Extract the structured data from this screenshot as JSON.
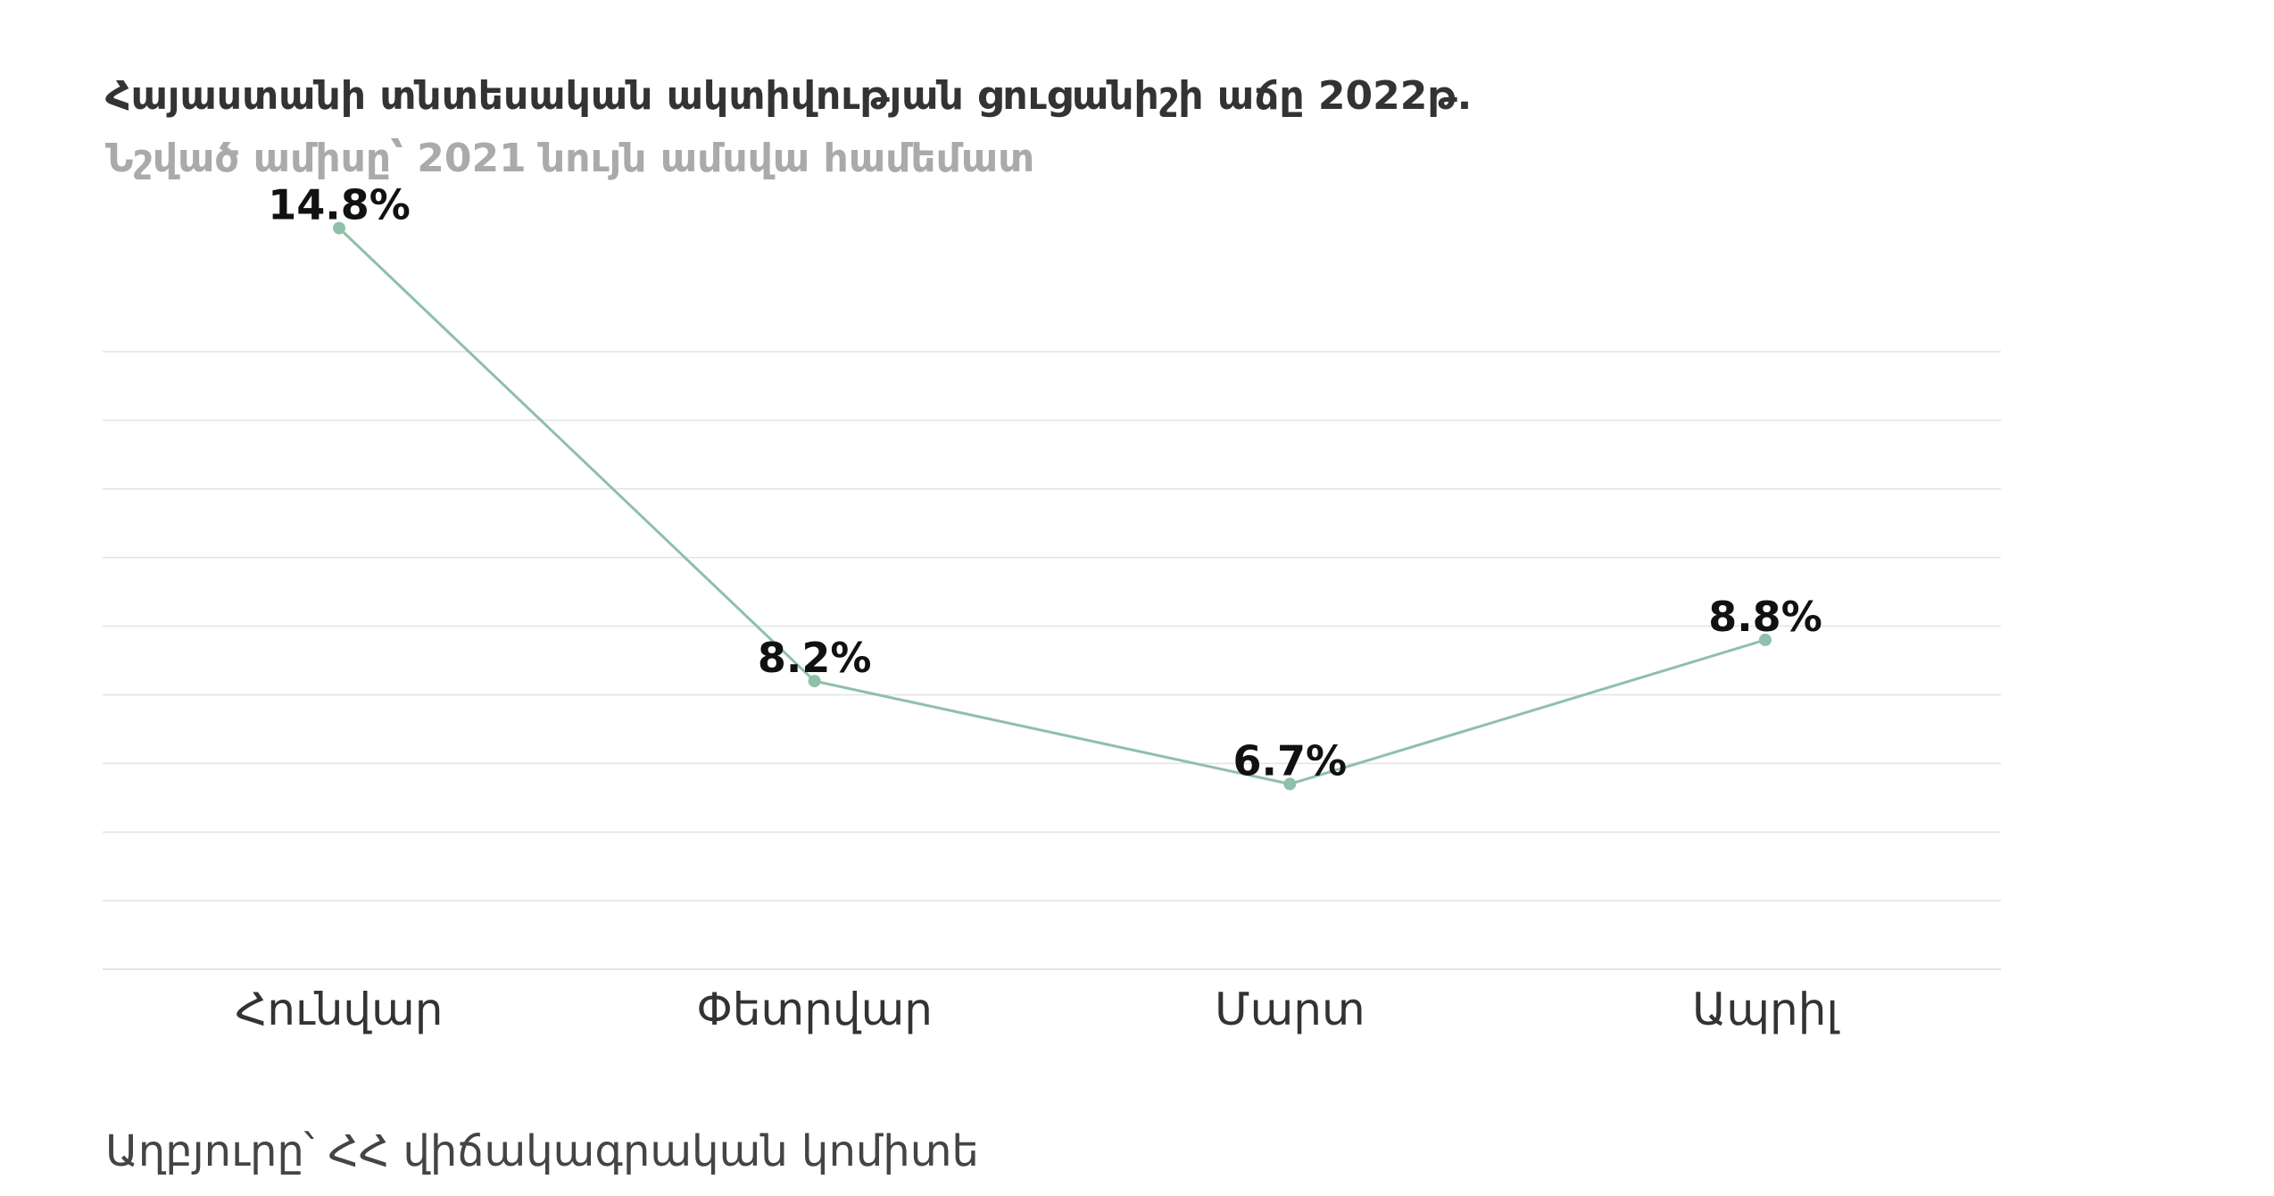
{
  "chart_data": {
    "type": "line",
    "title": "Հայաստանի տնտեսական ակտիվության ցուցանիշի աճը 2022թ.",
    "subtitle": "Նշված ամիսը՝ 2021 նույն ամսվա համեմատ",
    "categories": [
      "Հունվար",
      "Փետրվար",
      "Մարտ",
      "Ապրիլ"
    ],
    "series": [
      {
        "values": [
          14.8,
          8.2,
          6.7,
          8.8
        ],
        "labels": [
          "14.8%",
          "8.2%",
          "6.7%",
          "8.8%"
        ]
      }
    ],
    "ylim": [
      4,
      13
    ],
    "grid": true,
    "xlabel": "",
    "ylabel": "",
    "line_color": "#8fc0a9",
    "grid_color": "#e3e3e3"
  },
  "source": "Աղբյուրը՝ ՀՀ վիճակագրական կոմիտե"
}
